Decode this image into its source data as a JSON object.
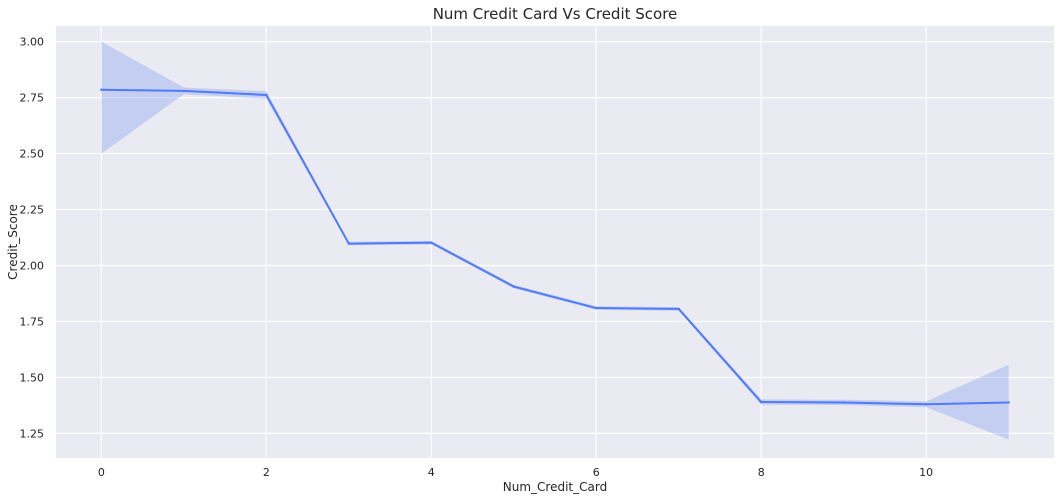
{
  "chart_data": {
    "type": "line",
    "title": "Num Credit Card Vs Credit Score",
    "xlabel": "Num_Credit_Card",
    "ylabel": "Credit_Score",
    "xlim": [
      -0.55,
      11.55
    ],
    "ylim": [
      1.14,
      3.07
    ],
    "xticks": [
      0,
      2,
      4,
      6,
      8,
      10
    ],
    "xtick_labels": [
      "0",
      "2",
      "4",
      "6",
      "8",
      "10"
    ],
    "yticks": [
      1.25,
      1.5,
      1.75,
      2.0,
      2.25,
      2.5,
      2.75,
      3.0
    ],
    "ytick_labels": [
      "1.25",
      "1.50",
      "1.75",
      "2.00",
      "2.25",
      "2.50",
      "2.75",
      "3.00"
    ],
    "grid": true,
    "background": "#eaeaf2",
    "series": [
      {
        "color": "#4e7cf6",
        "band_color": "#7f9cf2",
        "x": [
          0,
          1,
          2,
          3,
          4,
          5,
          6,
          7,
          8,
          9,
          10,
          11
        ],
        "values": [
          2.785,
          2.78,
          2.762,
          2.098,
          2.102,
          1.906,
          1.81,
          1.806,
          1.39,
          1.388,
          1.38,
          1.388
        ],
        "ci_lower": [
          2.5,
          2.765,
          2.745,
          2.09,
          2.094,
          1.898,
          1.802,
          1.798,
          1.378,
          1.376,
          1.367,
          1.222
        ],
        "ci_upper": [
          3.0,
          2.795,
          2.779,
          2.106,
          2.11,
          1.914,
          1.818,
          1.814,
          1.402,
          1.4,
          1.393,
          1.557
        ]
      }
    ]
  }
}
